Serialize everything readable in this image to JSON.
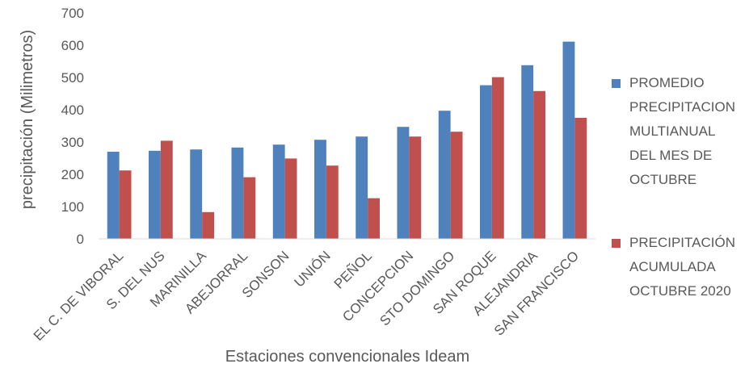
{
  "chart_data": {
    "type": "bar",
    "xlabel": "Estaciones convencionales Ideam",
    "ylabel": "precipitación (Milimetros)",
    "ylim": [
      0,
      700
    ],
    "yticks": [
      "0",
      "100",
      "200",
      "300",
      "400",
      "500",
      "600",
      "700"
    ],
    "grid": false,
    "legend_position": "right",
    "categories": [
      "EL C. DE VIBORAL",
      "S. DEL NUS",
      "MARINILLA",
      "ABEJORRAL",
      "SONSON",
      "UNIÓN",
      "PEÑOL",
      "CONCEPCION",
      "STO DOMINGO",
      "SAN ROQUE",
      "ALEJANDRIA",
      "SAN FRANCISCO"
    ],
    "series": [
      {
        "name": "PROMEDIO PRECIPITACION MULTIANUAL DEL MES DE OCTUBRE",
        "color": "#4F81BD",
        "values": [
          270,
          273,
          277,
          283,
          292,
          307,
          317,
          347,
          397,
          476,
          538,
          611
        ]
      },
      {
        "name": "PRECIPITACIÓN ACUMULADA OCTUBRE 2020",
        "color": "#C0504D",
        "values": [
          212,
          304,
          83,
          191,
          249,
          227,
          126,
          317,
          332,
          501,
          458,
          375
        ]
      }
    ]
  },
  "legend": {
    "lines_1": [
      "PROMEDIO",
      "PRECIPITACION",
      "MULTIANUAL",
      "DEL MES DE",
      "OCTUBRE"
    ],
    "lines_2": [
      "PRECIPITACIÓN",
      "ACUMULADA",
      "OCTUBRE 2020"
    ]
  }
}
